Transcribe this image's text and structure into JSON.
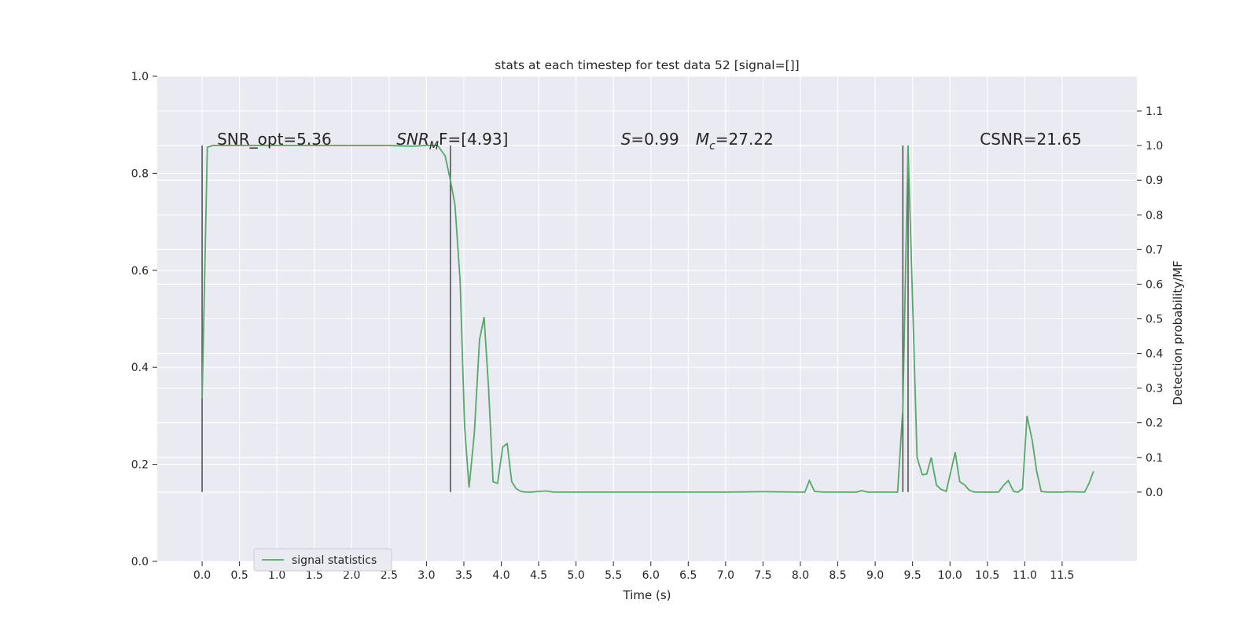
{
  "chart_data": {
    "type": "line",
    "title": "stats at each timestep for test data 52 [signal=[]]",
    "xlabel": "Time (s)",
    "ylabel_left": "",
    "ylabel_right": "Detection probability/MF",
    "xlim": [
      -0.6,
      12.5
    ],
    "ylim_left": [
      0.0,
      1.0
    ],
    "ylim_right": [
      -0.2,
      1.2
    ],
    "x_ticks": [
      "0.0",
      "0.5",
      "1.0",
      "1.5",
      "2.0",
      "2.5",
      "3.0",
      "3.5",
      "4.0",
      "4.5",
      "5.0",
      "5.5",
      "6.0",
      "6.5",
      "7.0",
      "7.5",
      "8.0",
      "8.5",
      "9.0",
      "9.5",
      "10.0",
      "10.5",
      "11.0",
      "11.5"
    ],
    "y_left_ticks": [
      "0.0",
      "0.2",
      "0.4",
      "0.6",
      "0.8",
      "1.0"
    ],
    "y_right_ticks": [
      "0.0",
      "0.1",
      "0.2",
      "0.3",
      "0.4",
      "0.5",
      "0.6",
      "0.7",
      "0.8",
      "0.9",
      "1.0",
      "1.1"
    ],
    "grid": true,
    "legend_position": "bottom-left",
    "background_color": "#eaeaf2",
    "line_color": "#55a868",
    "vline_color": "#555555",
    "series": [
      {
        "name": "signal statistics",
        "x": [
          0.0,
          0.07,
          0.14,
          0.5,
          1.0,
          1.5,
          2.0,
          2.5,
          2.8,
          3.0,
          3.15,
          3.25,
          3.32,
          3.38,
          3.45,
          3.51,
          3.57,
          3.64,
          3.71,
          3.77,
          3.83,
          3.89,
          3.95,
          4.02,
          4.08,
          4.14,
          4.2,
          4.26,
          4.33,
          4.4,
          4.5,
          4.6,
          4.7,
          5.0,
          6.0,
          7.0,
          7.5,
          8.0,
          8.06,
          8.12,
          8.19,
          8.3,
          8.5,
          8.75,
          8.82,
          8.9,
          9.1,
          9.3,
          9.37,
          9.44,
          9.5,
          9.56,
          9.63,
          9.69,
          9.75,
          9.82,
          9.88,
          9.95,
          10.07,
          10.13,
          10.2,
          10.26,
          10.33,
          10.4,
          10.5,
          10.65,
          10.72,
          10.78,
          10.85,
          10.91,
          10.97,
          11.03,
          11.1,
          11.16,
          11.22,
          11.3,
          11.5,
          11.56,
          11.8,
          11.86,
          11.92
        ],
        "y": [
          0.27,
          0.995,
          1.0,
          1.0,
          1.0,
          1.0,
          1.0,
          1.0,
          0.998,
          1.0,
          1.0,
          0.97,
          0.9,
          0.83,
          0.61,
          0.19,
          0.013,
          0.17,
          0.44,
          0.505,
          0.3,
          0.03,
          0.025,
          0.13,
          0.14,
          0.03,
          0.01,
          0.002,
          0.0,
          0.0,
          0.002,
          0.003,
          0.0,
          0.0,
          0.0,
          0.0,
          0.001,
          0.0,
          0.0,
          0.033,
          0.002,
          0.0,
          0.0,
          0.0,
          0.004,
          0.0,
          0.0,
          0.0,
          0.24,
          1.0,
          0.55,
          0.1,
          0.05,
          0.052,
          0.1,
          0.02,
          0.008,
          0.002,
          0.115,
          0.03,
          0.02,
          0.005,
          0.0,
          0.0,
          0.0,
          0.0,
          0.02,
          0.033,
          0.002,
          0.0,
          0.01,
          0.22,
          0.15,
          0.06,
          0.002,
          0.0,
          0.0,
          0.001,
          0.0,
          0.025,
          0.06
        ]
      }
    ],
    "vertical_lines": [
      {
        "x": 0.0,
        "y0": 0.0,
        "y1": 1.0
      },
      {
        "x": 3.32,
        "y0": 0.0,
        "y1": 1.0
      },
      {
        "x": 9.37,
        "y0": 0.0,
        "y1": 1.0
      },
      {
        "x": 9.44,
        "y0": 0.0,
        "y1": 1.0
      }
    ],
    "annotations": [
      {
        "text": "SNR_opt=5.36",
        "x": 0.2,
        "y": 1.0
      },
      {
        "text_prefix": "SNR",
        "text_sub": "M",
        "text_suffix": "F=[4.93]",
        "x": 2.6,
        "y": 1.0,
        "italic": true
      },
      {
        "text_prefix": "S",
        "text_suffix": "=0.99",
        "x": 5.6,
        "y": 1.0
      },
      {
        "text_prefix": "M",
        "text_sub": "c",
        "text_suffix": "=27.22",
        "x": 6.6,
        "y": 1.0
      },
      {
        "text": "CSNR=21.65",
        "x": 10.4,
        "y": 1.0
      }
    ]
  }
}
